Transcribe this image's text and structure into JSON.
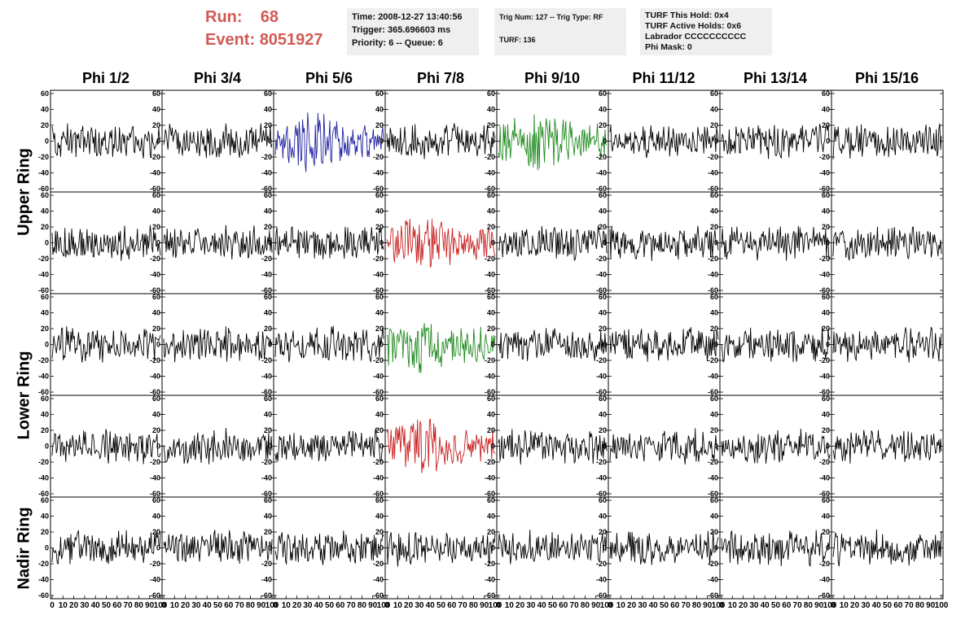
{
  "run": {
    "label": "Run:",
    "value": "68"
  },
  "event": {
    "label": "Event:",
    "value": "8051927"
  },
  "info_box_1": {
    "time": "Time: 2008-12-27 13:40:56",
    "trigger": "Trigger: 365.696603 ms",
    "priority": "Priority: 6 -- Queue: 6"
  },
  "info_box_2": {
    "trig": "Trig Num: 127 -- Trig Type: RF",
    "turf": "TURF: 136"
  },
  "info_box_3": {
    "this_hold": "TURF This Hold: 0x4",
    "active_holds": "TURF Active Holds: 0x6",
    "labrador": "Labrador CCCCCCCCCC",
    "phi_mask": "Phi Mask: 0"
  },
  "columns": [
    "Phi 1/2",
    "Phi 3/4",
    "Phi 5/6",
    "Phi 7/8",
    "Phi 9/10",
    "Phi 11/12",
    "Phi 13/14",
    "Phi 15/16"
  ],
  "row_labels": [
    "Upper Ring",
    "Lower Ring",
    "Nadir Ring"
  ],
  "chart_data": {
    "type": "line",
    "rows": 5,
    "cols": 8,
    "xlim": [
      0,
      100
    ],
    "ylim": [
      -60,
      60
    ],
    "y_ticks": [
      -60,
      -40,
      -20,
      0,
      20,
      40,
      60
    ],
    "x_ticks": [
      0,
      10,
      20,
      30,
      40,
      50,
      60,
      70,
      80,
      90,
      100
    ],
    "default_color": "#000000",
    "highlights": [
      {
        "row": 0,
        "col": 2,
        "color": "#2020a0"
      },
      {
        "row": 0,
        "col": 4,
        "color": "#208a20"
      },
      {
        "row": 1,
        "col": 3,
        "color": "#c82020"
      },
      {
        "row": 2,
        "col": 3,
        "color": "#208a20"
      },
      {
        "row": 3,
        "col": 3,
        "color": "#c82020"
      }
    ]
  }
}
